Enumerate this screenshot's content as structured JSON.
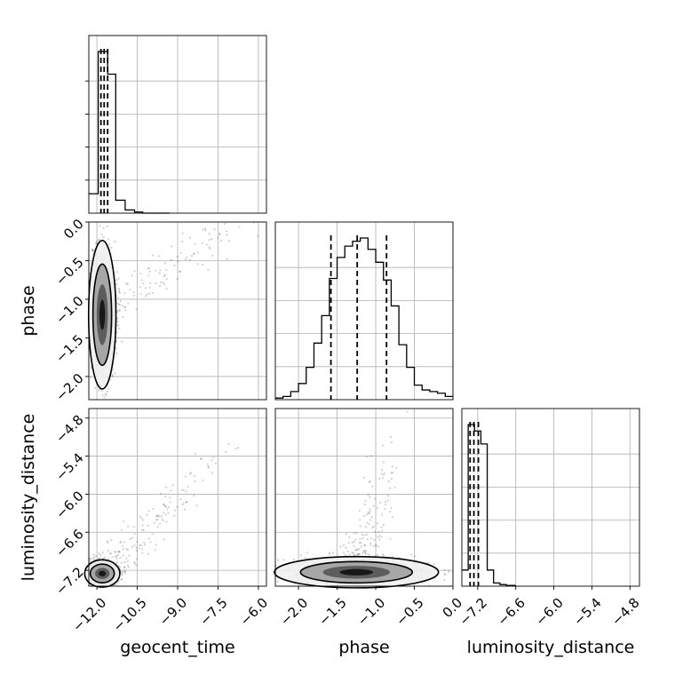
{
  "chart_data": {
    "type": "corner",
    "parameters": [
      "geocent_time",
      "phase",
      "luminosity_distance"
    ],
    "grid": true,
    "axes": {
      "geocent_time": {
        "label": "geocent_time",
        "lim": [
          -12.3,
          -5.7
        ],
        "ticks": [
          "−12.0",
          "−10.5",
          "−9.0",
          "−7.5",
          "−6.0"
        ],
        "tick_values": [
          -12.0,
          -10.5,
          -9.0,
          -7.5,
          -6.0
        ]
      },
      "phase": {
        "label": "phase",
        "lim": [
          -2.3,
          0.0
        ],
        "ticks": [
          "−2.0",
          "−1.5",
          "−1.0",
          "−0.5",
          "0.0"
        ],
        "tick_values": [
          -2.0,
          -1.5,
          -1.0,
          -0.5,
          0.0
        ]
      },
      "luminosity_distance": {
        "label": "luminosity_distance",
        "lim": [
          -7.45,
          -4.65
        ],
        "ticks": [
          "−7.2",
          "−6.6",
          "−6.0",
          "−5.4",
          "−4.8"
        ],
        "tick_values": [
          -7.2,
          -6.6,
          -6.0,
          -5.4,
          -4.8
        ]
      }
    },
    "histograms": [
      {
        "param": "geocent_time",
        "bin_edges": [
          -12.3,
          -11.95,
          -11.6,
          -11.3,
          -10.95,
          -10.6,
          -10.3,
          -9.3
        ],
        "counts": [
          0.12,
          1.0,
          0.86,
          0.08,
          0.02,
          0.007,
          0.0
        ],
        "quantiles": [
          -11.85,
          -11.73,
          -11.6
        ]
      },
      {
        "param": "phase",
        "bin_edges": [
          -2.3,
          -2.2,
          -2.1,
          -2.0,
          -1.9,
          -1.8,
          -1.7,
          -1.6,
          -1.5,
          -1.4,
          -1.3,
          -1.2,
          -1.1,
          -1.0,
          -0.9,
          -0.8,
          -0.7,
          -0.6,
          -0.5,
          -0.4,
          -0.3,
          -0.2,
          -0.1,
          0.0
        ],
        "counts": [
          0.01,
          0.02,
          0.05,
          0.1,
          0.2,
          0.35,
          0.52,
          0.75,
          0.88,
          0.95,
          0.98,
          1.0,
          0.93,
          0.85,
          0.74,
          0.58,
          0.34,
          0.2,
          0.09,
          0.06,
          0.05,
          0.04,
          0.02
        ],
        "quantiles": [
          -1.58,
          -1.24,
          -0.86
        ]
      },
      {
        "param": "luminosity_distance",
        "bin_edges": [
          -7.45,
          -7.35,
          -7.25,
          -7.15,
          -7.05,
          -6.95,
          -6.85,
          -6.75,
          -6.6
        ],
        "counts": [
          0.1,
          1.0,
          0.96,
          0.88,
          0.1,
          0.02,
          0.01,
          0.005
        ],
        "quantiles": [
          -7.32,
          -7.26,
          -7.19
        ]
      }
    ],
    "scatter_panels": [
      {
        "x": "geocent_time",
        "y": "phase",
        "contour_center": [
          -11.8,
          -1.2
        ]
      },
      {
        "x": "geocent_time",
        "y": "luminosity_distance",
        "contour_center": [
          -11.8,
          -7.25
        ]
      },
      {
        "x": "phase",
        "y": "luminosity_distance",
        "contour_center": [
          -1.25,
          -7.23
        ]
      }
    ]
  }
}
